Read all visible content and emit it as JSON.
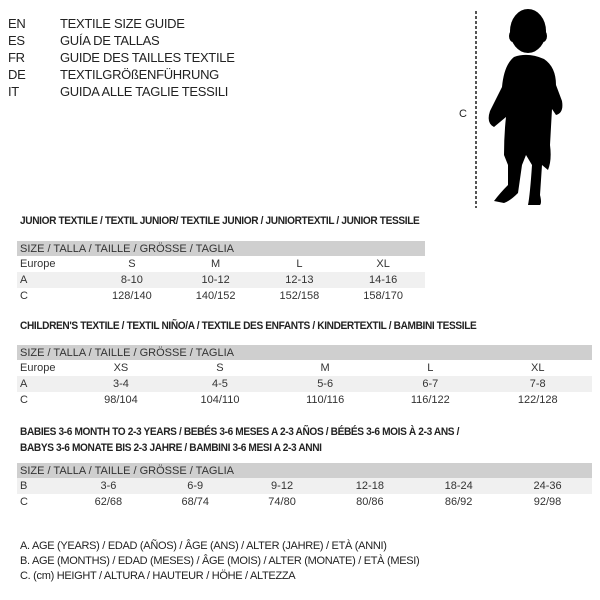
{
  "languages": [
    {
      "code": "EN",
      "title": "TEXTILE SIZE GUIDE"
    },
    {
      "code": "ES",
      "title": "GUÍA DE TALLAS"
    },
    {
      "code": "FR",
      "title": "GUIDE DES TAILLES TEXTILE"
    },
    {
      "code": "DE",
      "title": "TEXTILGRÖßENFÜHRUNG"
    },
    {
      "code": "IT",
      "title": "GUIDA ALLE TAGLIE TESSILI"
    }
  ],
  "figure": {
    "measure_label": "C",
    "icon": "child-silhouette"
  },
  "junior": {
    "title": "JUNIOR TEXTILE / TEXTIL JUNIOR/ TEXTILE JUNIOR / JUNIORTEXTIL / JUNIOR TESSILE",
    "header": "SIZE / TALLA / TAILLE / GRÖSSE / TAGLIA",
    "rows": [
      [
        "Europe",
        "S",
        "M",
        "L",
        "XL"
      ],
      [
        "A",
        "8-10",
        "10-12",
        "12-13",
        "14-16"
      ],
      [
        "C",
        "128/140",
        "140/152",
        "152/158",
        "158/170"
      ]
    ]
  },
  "children": {
    "title": "CHILDREN'S TEXTILE / TEXTIL NIÑO/A / TEXTILE DES ENFANTS / KINDERTEXTIL / BAMBINI TESSILE",
    "header": "SIZE / TALLA / TAILLE / GRÖSSE / TAGLIA",
    "rows": [
      [
        "Europe",
        "XS",
        "S",
        "M",
        "L",
        "XL"
      ],
      [
        "A",
        "3-4",
        "4-5",
        "5-6",
        "6-7",
        "7-8"
      ],
      [
        "C",
        "98/104",
        "104/110",
        "110/116",
        "116/122",
        "122/128"
      ]
    ]
  },
  "babies": {
    "title_line1": "BABIES 3-6 MONTH TO 2-3 YEARS / BEBÉS 3-6 MESES A 2-3 AÑOS / BÉBÉS 3-6 MOIS À 2-3 ANS /",
    "title_line2": "BABYS 3-6 MONATE BIS 2-3 JAHRE / BAMBINI 3-6 MESI A 2-3 ANNI",
    "header": "SIZE / TALLA / TAILLE / GRÖSSE / TAGLIA",
    "rows": [
      [
        "B",
        "3-6",
        "6-9",
        "9-12",
        "12-18",
        "18-24",
        "24-36"
      ],
      [
        "C",
        "62/68",
        "68/74",
        "74/80",
        "80/86",
        "86/92",
        "92/98"
      ]
    ]
  },
  "legend": [
    "A. AGE (YEARS) / EDAD (AÑOS) / ÂGE (ANS) / ALTER (JAHRE) / ETÀ (ANNI)",
    "B. AGE (MONTHS) / EDAD (MESES) / ÂGE (MOIS) / ALTER (MONATE) / ETÀ (MESI)",
    "C. (cm) HEIGHT / ALTURA / HAUTEUR / HÖHE / ALTEZZA"
  ]
}
